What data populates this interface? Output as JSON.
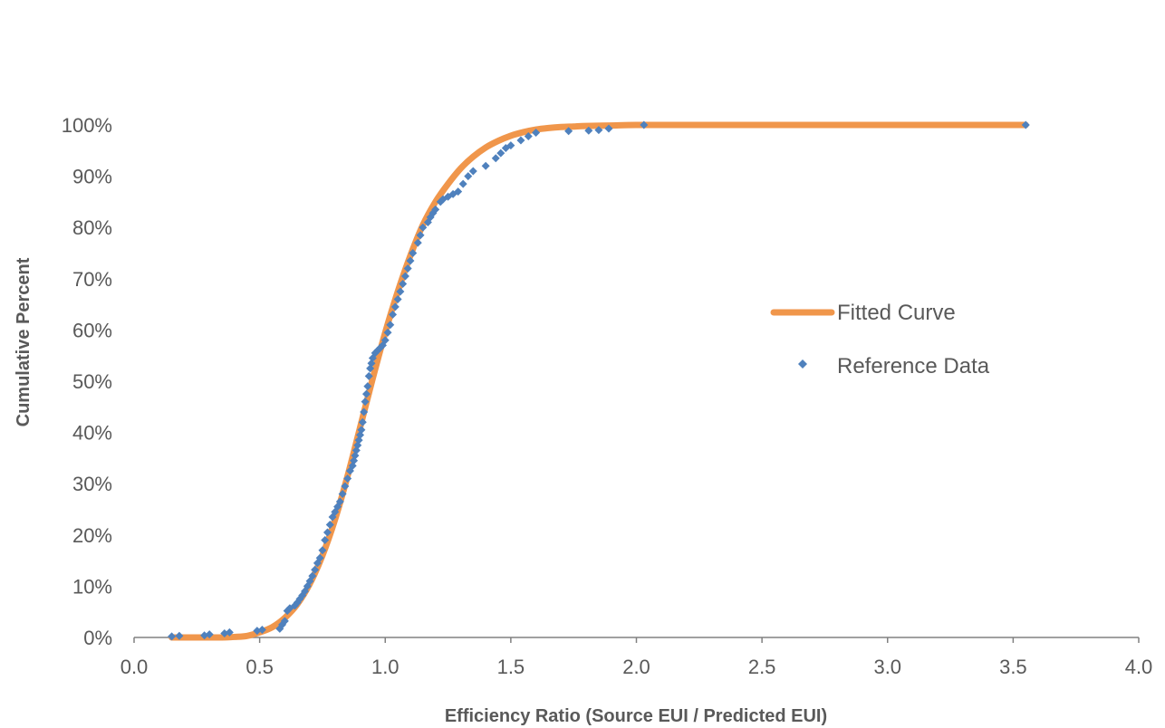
{
  "chart_data": {
    "type": "scatter",
    "xlabel": "Efficiency Ratio (Source EUI / Predicted EUI)",
    "ylabel": "Cumulative Percent",
    "xlim": [
      0.0,
      4.0
    ],
    "ylim": [
      0,
      100
    ],
    "x_ticks": [
      "0.0",
      "0.5",
      "1.0",
      "1.5",
      "2.0",
      "2.5",
      "3.0",
      "3.5",
      "4.0"
    ],
    "y_ticks": [
      "0%",
      "10%",
      "20%",
      "30%",
      "40%",
      "50%",
      "60%",
      "70%",
      "80%",
      "90%",
      "100%"
    ],
    "grid": false,
    "legend_position": "right",
    "colors": {
      "fitted": "#f0964b",
      "reference": "#4f81bd",
      "axis": "#808080",
      "text": "#595959"
    },
    "series": [
      {
        "name": "Fitted Curve",
        "kind": "line",
        "x": [
          0.15,
          0.2,
          0.25,
          0.3,
          0.35,
          0.4,
          0.45,
          0.5,
          0.55,
          0.6,
          0.65,
          0.7,
          0.75,
          0.8,
          0.85,
          0.9,
          0.95,
          1.0,
          1.05,
          1.1,
          1.15,
          1.2,
          1.25,
          1.3,
          1.35,
          1.4,
          1.45,
          1.5,
          1.55,
          1.6,
          1.65,
          1.7,
          1.75,
          1.8,
          1.9,
          2.0,
          2.2,
          2.5,
          3.0,
          3.55
        ],
        "y": [
          0,
          0,
          0,
          0,
          0,
          0.1,
          0.3,
          1.0,
          2.0,
          3.8,
          6.5,
          10.5,
          16.0,
          23.0,
          31.5,
          41.0,
          50.5,
          59.5,
          67.5,
          74.5,
          80.5,
          85.0,
          88.5,
          91.5,
          93.8,
          95.6,
          96.9,
          97.9,
          98.6,
          99.1,
          99.4,
          99.6,
          99.7,
          99.8,
          99.9,
          100,
          100,
          100,
          100,
          100
        ]
      },
      {
        "name": "Reference Data",
        "kind": "scatter",
        "x": [
          0.15,
          0.18,
          0.28,
          0.3,
          0.36,
          0.38,
          0.49,
          0.51,
          0.58,
          0.59,
          0.6,
          0.61,
          0.62,
          0.64,
          0.65,
          0.66,
          0.67,
          0.68,
          0.69,
          0.7,
          0.71,
          0.72,
          0.73,
          0.74,
          0.75,
          0.76,
          0.77,
          0.78,
          0.79,
          0.8,
          0.81,
          0.82,
          0.83,
          0.84,
          0.85,
          0.86,
          0.87,
          0.875,
          0.88,
          0.885,
          0.89,
          0.895,
          0.9,
          0.905,
          0.91,
          0.915,
          0.92,
          0.925,
          0.93,
          0.935,
          0.94,
          0.945,
          0.95,
          0.96,
          0.97,
          0.98,
          0.99,
          1.0,
          1.01,
          1.02,
          1.03,
          1.04,
          1.05,
          1.06,
          1.07,
          1.08,
          1.09,
          1.1,
          1.11,
          1.13,
          1.14,
          1.15,
          1.17,
          1.18,
          1.19,
          1.2,
          1.22,
          1.23,
          1.25,
          1.27,
          1.29,
          1.31,
          1.33,
          1.35,
          1.4,
          1.44,
          1.46,
          1.48,
          1.5,
          1.54,
          1.57,
          1.6,
          1.73,
          1.81,
          1.85,
          1.89,
          2.03,
          3.55
        ],
        "y": [
          0.2,
          0.3,
          0.4,
          0.6,
          0.8,
          1.0,
          1.3,
          1.5,
          1.7,
          2.5,
          3.2,
          5.2,
          5.7,
          6.2,
          6.8,
          7.5,
          8.2,
          9.0,
          10.0,
          11.0,
          12.0,
          13.2,
          14.5,
          15.5,
          17.0,
          19.0,
          20.5,
          22.0,
          23.5,
          24.5,
          25.5,
          26.5,
          28.0,
          29.5,
          31.0,
          32.5,
          33.5,
          34.5,
          35.5,
          36.5,
          37.5,
          38.5,
          39.5,
          40.5,
          42.0,
          44.0,
          46.0,
          47.5,
          49.0,
          51.0,
          52.5,
          53.5,
          54.5,
          55.5,
          56.0,
          56.5,
          57.0,
          58.0,
          59.5,
          61.0,
          63.0,
          64.5,
          66.0,
          67.5,
          69.0,
          70.5,
          72.0,
          73.5,
          75.0,
          77.0,
          78.5,
          80.0,
          81.0,
          82.0,
          82.8,
          83.5,
          85.0,
          85.5,
          86.0,
          86.5,
          87.0,
          88.5,
          90.0,
          91.0,
          92.0,
          93.5,
          94.5,
          95.5,
          96.0,
          97.0,
          97.8,
          98.5,
          98.8,
          98.9,
          99.0,
          99.3,
          100,
          100
        ]
      }
    ]
  }
}
